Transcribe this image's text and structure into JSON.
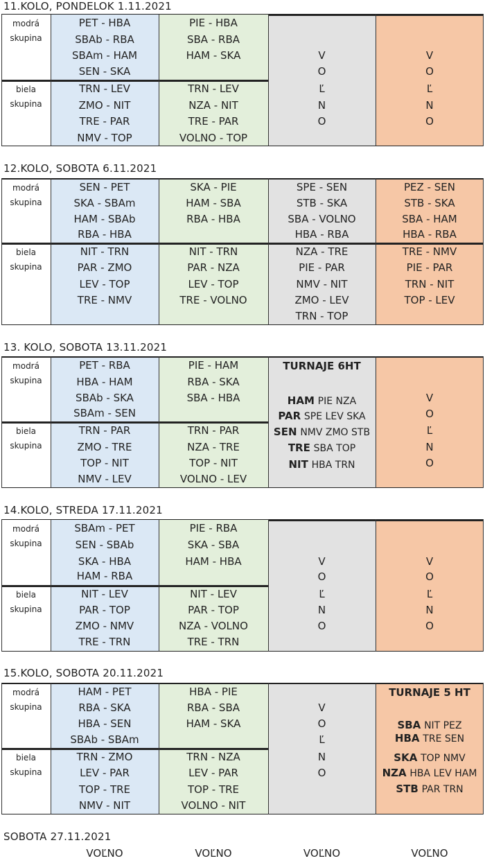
{
  "rounds": [
    {
      "header": "11.KOLO, PONDELOK  1.11.2021",
      "modra": "modrá",
      "skupina": "skupina",
      "biela": "biela",
      "col_a": [
        "PET - HBA",
        "SBAb - RBA",
        "SBAm - HAM",
        "SEN - SKA",
        "TRN - LEV",
        "ZMO - NIT",
        "TRE - PAR",
        "NMV - TOP"
      ],
      "col_b": [
        "PIE - HBA",
        "SBA - RBA",
        "HAM - SKA",
        "",
        "TRN - LEV",
        "NZA - NIT",
        "TRE - PAR",
        "VOLNO - TOP"
      ],
      "col_c": [
        "V",
        "O",
        "Ľ",
        "N",
        "O"
      ],
      "col_d": [
        "V",
        "O",
        "Ľ",
        "N",
        "O"
      ]
    },
    {
      "header": "12.KOLO, SOBOTA  6.11.2021",
      "modra": "modrá",
      "skupina": "skupina",
      "biela": "biela",
      "col_a": [
        "SEN - PET",
        "SKA - SBAm",
        "HAM - SBAb",
        "RBA - HBA",
        "NIT - TRN",
        "PAR - ZMO",
        "LEV - TOP",
        "TRE - NMV"
      ],
      "col_b": [
        "SKA - PIE",
        "HAM - SBA",
        "RBA - HBA",
        "",
        "NIT - TRN",
        "PAR - NZA",
        "LEV - TOP",
        "TRE - VOLNO"
      ],
      "col_c": [
        "SPE - SEN",
        "STB - SKA",
        "SBA - VOLNO",
        "HBA - RBA",
        "NZA - TRE",
        "PIE - PAR",
        "NMV - NIT",
        "ZMO - LEV",
        "TRN - TOP"
      ],
      "col_d": [
        "PEZ - SEN",
        "STB - SKA",
        "SBA - HAM",
        "HBA - RBA",
        "TRE - NMV",
        "PIE - PAR",
        "TRN - NIT",
        "TOP - LEV"
      ]
    },
    {
      "header": "13. KOLO, SOBOTA 13.11.2021",
      "modra": "modrá",
      "skupina": "skupina",
      "biela": "biela",
      "col_a": [
        "PET - RBA",
        "HBA - HAM",
        "SBAb - SKA",
        "SBAm - SEN",
        "TRN - PAR",
        "ZMO - TRE",
        "TOP - NIT",
        "NMV - LEV"
      ],
      "col_b": [
        "PIE - HAM",
        "RBA - SKA",
        "SBA - HBA",
        "",
        "TRN - PAR",
        "NZA - TRE",
        "TOP - NIT",
        "VOLNO - LEV"
      ],
      "col_c_title": "TURNAJE 6HT",
      "col_c": [
        {
          "host": "HAM",
          "guests": "PIE NZA"
        },
        {
          "host": "PAR",
          "guests": "SPE LEV SKA"
        },
        {
          "host": "SEN",
          "guests": "NMV ZMO STB"
        },
        {
          "host": "TRE",
          "guests": "SBA TOP"
        },
        {
          "host": "NIT",
          "guests": "HBA TRN"
        }
      ],
      "col_d": [
        "V",
        "O",
        "Ľ",
        "N",
        "O"
      ]
    },
    {
      "header": "14.KOLO, STREDA  17.11.2021",
      "modra": "modrá",
      "skupina": "skupina",
      "biela": "biela",
      "col_a": [
        "SBAm - PET",
        "SEN - SBAb",
        "SKA - HBA",
        "HAM - RBA",
        "NIT - LEV",
        "PAR - TOP",
        "ZMO - NMV",
        "TRE - TRN"
      ],
      "col_b": [
        "PIE - RBA",
        "SKA - SBA",
        "HAM - HBA",
        "",
        "NIT - LEV",
        "PAR - TOP",
        "NZA - VOLNO",
        "TRE - TRN"
      ],
      "col_c": [
        "V",
        "O",
        "Ľ",
        "N",
        "O"
      ],
      "col_d": [
        "V",
        "O",
        "Ľ",
        "N",
        "O"
      ]
    },
    {
      "header": "15.KOLO, SOBOTA  20.11.2021",
      "modra": "modrá",
      "skupina": "skupina",
      "biela": "biela",
      "col_a": [
        "HAM - PET",
        "RBA - SKA",
        "HBA - SEN",
        "SBAb - SBAm",
        "TRN - ZMO",
        "LEV - PAR",
        "TOP - TRE",
        "NMV - NIT"
      ],
      "col_b": [
        "HBA - PIE",
        "RBA - SBA",
        "HAM - SKA",
        "",
        "TRN - NZA",
        "LEV - PAR",
        "TOP - TRE",
        "VOLNO - NIT"
      ],
      "col_c": [
        "V",
        "O",
        "Ľ",
        "N",
        "O"
      ],
      "col_d_title": "TURNAJE 5 HT",
      "col_d": [
        {
          "host": "SBA",
          "guests": "NIT PEZ"
        },
        {
          "host": "HBA",
          "guests": "TRE SEN"
        },
        {
          "host": "SKA",
          "guests": "TOP NMV"
        },
        {
          "host": "NZA",
          "guests": "HBA LEV HAM"
        },
        {
          "host": "STB",
          "guests": "PAR TRN"
        }
      ]
    }
  ],
  "last": {
    "header": "SOBOTA 27.11.2021",
    "cells": [
      "VOĽNO",
      "VOĽNO",
      "VOĽNO",
      "VOĽNO"
    ]
  }
}
